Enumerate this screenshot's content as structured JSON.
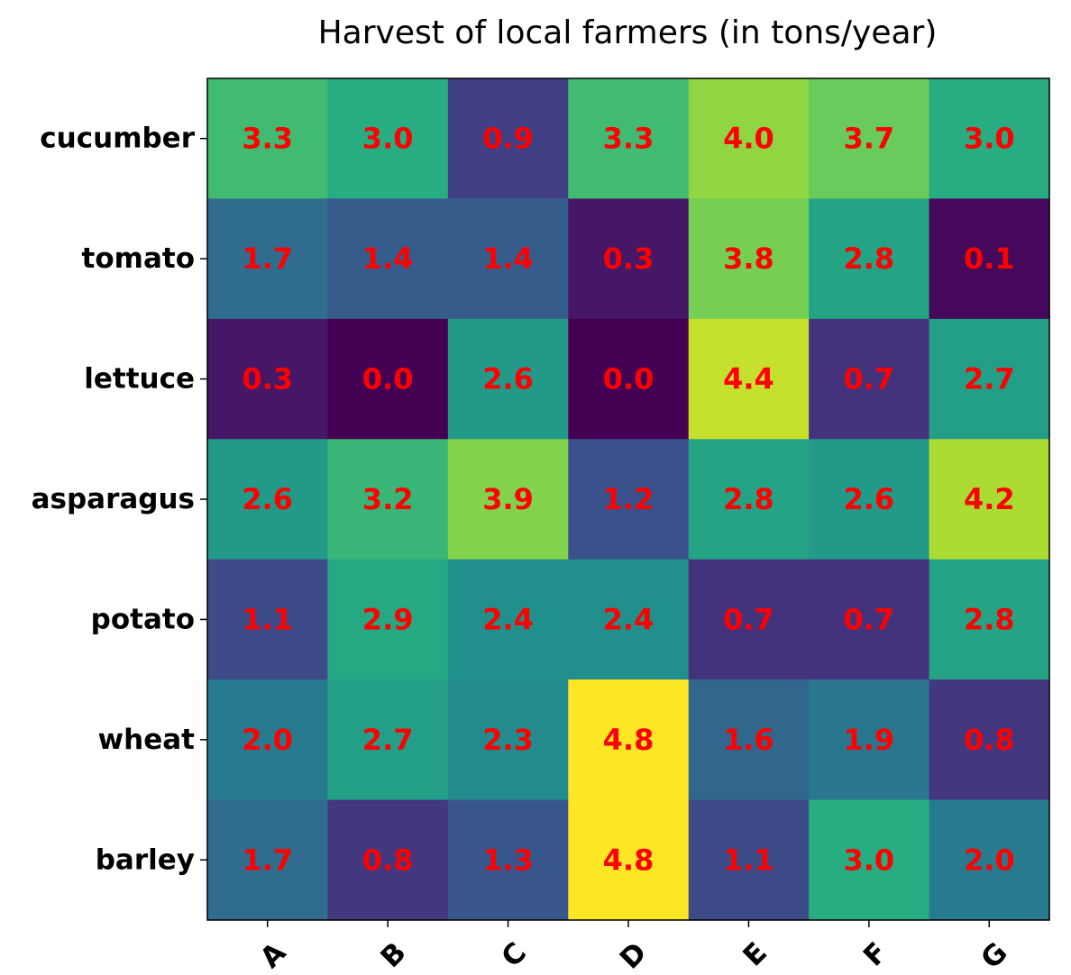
{
  "chart_data": {
    "type": "heatmap",
    "title": "Harvest of local farmers (in tons/year)",
    "xlabel": "",
    "ylabel": "",
    "x_categories": [
      "A",
      "B",
      "C",
      "D",
      "E",
      "F",
      "G"
    ],
    "y_categories": [
      "cucumber",
      "tomato",
      "lettuce",
      "asparagus",
      "potato",
      "wheat",
      "barley"
    ],
    "values": [
      [
        3.3,
        3.0,
        0.9,
        3.3,
        4.0,
        3.7,
        3.0
      ],
      [
        1.7,
        1.4,
        1.4,
        0.3,
        3.8,
        2.8,
        0.1
      ],
      [
        0.3,
        0.0,
        2.6,
        0.0,
        4.4,
        0.7,
        2.7
      ],
      [
        2.6,
        3.2,
        3.9,
        1.2,
        2.8,
        2.6,
        4.2
      ],
      [
        1.1,
        2.9,
        2.4,
        2.4,
        0.7,
        0.7,
        2.8
      ],
      [
        2.0,
        2.7,
        2.3,
        4.8,
        1.6,
        1.9,
        0.8
      ],
      [
        1.7,
        0.8,
        1.3,
        4.8,
        1.1,
        3.0,
        2.0
      ]
    ],
    "colormap": "viridis",
    "annotation_color": "#ff0000",
    "x_tick_rotation": 45,
    "grid": false,
    "colorbar": false
  }
}
